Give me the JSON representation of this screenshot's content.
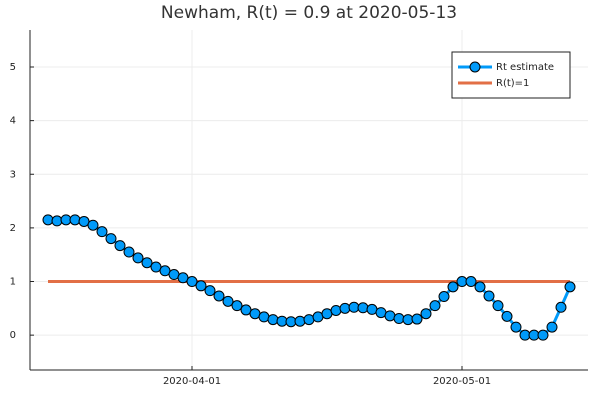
{
  "chart_data": {
    "type": "line",
    "title": "Newham, R(t) = 0.9 at 2020-05-13",
    "x": [
      "2020-03-16",
      "2020-03-17",
      "2020-03-18",
      "2020-03-19",
      "2020-03-20",
      "2020-03-21",
      "2020-03-22",
      "2020-03-23",
      "2020-03-24",
      "2020-03-25",
      "2020-03-26",
      "2020-03-27",
      "2020-03-28",
      "2020-03-29",
      "2020-03-30",
      "2020-03-31",
      "2020-04-01",
      "2020-04-02",
      "2020-04-03",
      "2020-04-04",
      "2020-04-05",
      "2020-04-06",
      "2020-04-07",
      "2020-04-08",
      "2020-04-09",
      "2020-04-10",
      "2020-04-11",
      "2020-04-12",
      "2020-04-13",
      "2020-04-14",
      "2020-04-15",
      "2020-04-16",
      "2020-04-17",
      "2020-04-18",
      "2020-04-19",
      "2020-04-20",
      "2020-04-21",
      "2020-04-22",
      "2020-04-23",
      "2020-04-24",
      "2020-04-25",
      "2020-04-26",
      "2020-04-27",
      "2020-04-28",
      "2020-04-29",
      "2020-04-30",
      "2020-05-01",
      "2020-05-02",
      "2020-05-03",
      "2020-05-04",
      "2020-05-05",
      "2020-05-06",
      "2020-05-07",
      "2020-05-08",
      "2020-05-09",
      "2020-05-10",
      "2020-05-11",
      "2020-05-12",
      "2020-05-13"
    ],
    "series": [
      {
        "name": "Rt estimate",
        "color": "#009af9",
        "values": [
          2.15,
          2.13,
          2.15,
          2.15,
          2.12,
          2.05,
          1.93,
          1.8,
          1.67,
          1.55,
          1.44,
          1.35,
          1.27,
          1.2,
          1.13,
          1.07,
          1.0,
          0.92,
          0.83,
          0.73,
          0.63,
          0.55,
          0.47,
          0.4,
          0.34,
          0.29,
          0.26,
          0.25,
          0.26,
          0.29,
          0.34,
          0.4,
          0.46,
          0.5,
          0.52,
          0.51,
          0.48,
          0.42,
          0.36,
          0.31,
          0.29,
          0.3,
          0.4,
          0.55,
          0.72,
          0.9,
          1.0,
          1.0,
          0.9,
          0.73,
          0.55,
          0.35,
          0.15,
          0.0,
          0.0,
          0.0,
          0.15,
          0.52,
          0.9
        ]
      }
    ],
    "reference_line": {
      "name": "R(t)=1",
      "value": 1,
      "color": "#e26f46"
    },
    "xlim": [
      "2020-03-14",
      "2020-05-15"
    ],
    "xticks": [
      "2020-04-01",
      "2020-05-01"
    ],
    "ylim": [
      -0.65,
      5.69
    ],
    "yticks": [
      0,
      1,
      2,
      3,
      4,
      5
    ],
    "grid": true,
    "legend": "top-right"
  }
}
